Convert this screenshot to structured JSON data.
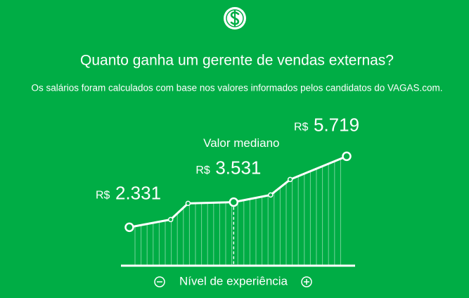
{
  "title": "Quanto ganha um gerente de vendas externas?",
  "subtitle": "Os salários foram calculados com base nos valores informados pelos candidatos do VAGAS.com.",
  "chart_data": {
    "type": "line",
    "x": [
      0,
      19,
      27,
      48,
      65,
      74,
      100
    ],
    "xlim": [
      0,
      100
    ],
    "values": [
      2331,
      2700,
      3472,
      3531,
      3874,
      4612,
      5719
    ],
    "value_labels": [
      "2.331",
      null,
      null,
      "3.531",
      null,
      null,
      "5.719"
    ],
    "currency": "R$",
    "median_label": "Valor mediano",
    "ylim": [
      500,
      6000
    ],
    "x_label": "Nível de experiência",
    "color": "#ffffff"
  }
}
